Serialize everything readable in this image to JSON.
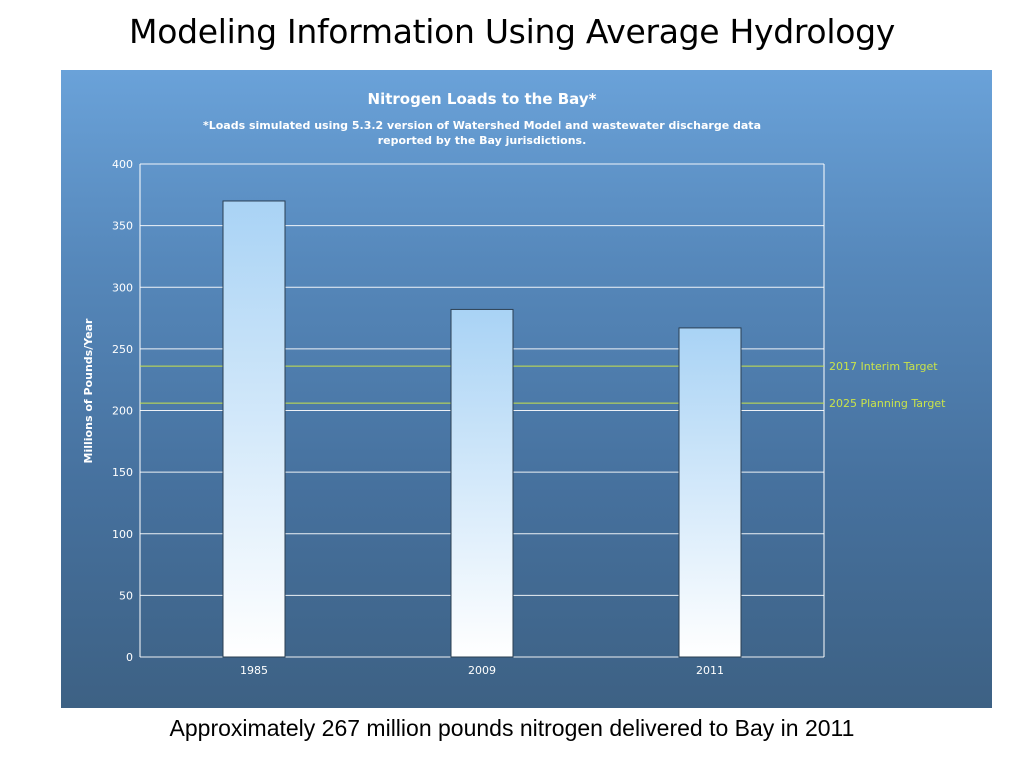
{
  "slide": {
    "title": "Modeling Information Using Average Hydrology",
    "caption": "Approximately 267 million pounds nitrogen delivered to Bay in 2011"
  },
  "chart_data": {
    "type": "bar",
    "title": "Nitrogen Loads to the Bay*",
    "subtitle_lines": [
      "*Loads simulated using 5.3.2 version of Watershed Model and wastewater discharge data",
      "reported by the Bay jurisdictions."
    ],
    "xlabel": "",
    "ylabel": "Millions of Pounds/Year",
    "categories": [
      "1985",
      "2009",
      "2011"
    ],
    "values": [
      370,
      282,
      267
    ],
    "ylim": [
      0,
      400
    ],
    "yticks": [
      0,
      50,
      100,
      150,
      200,
      250,
      300,
      350,
      400
    ],
    "grid": true,
    "reference_lines": [
      {
        "label": "2017 Interim Target",
        "value": 236
      },
      {
        "label": "2025 Planning Target",
        "value": 206
      }
    ],
    "colors": {
      "bar_top": "#a9d3f5",
      "bar_bottom": "#ffffff",
      "bar_stroke": "#2b3f52",
      "grid": "#ffffff",
      "target": "#c9e34a"
    }
  }
}
